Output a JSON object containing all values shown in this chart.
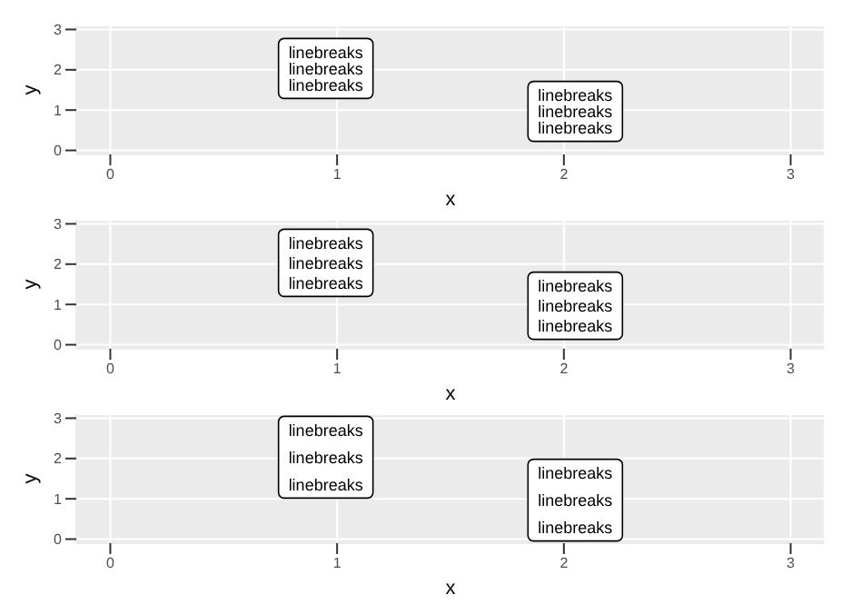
{
  "chart_data": [
    {
      "type": "scatter",
      "xlabel": "x",
      "ylabel": "y",
      "xlim": [
        -0.15,
        3.15
      ],
      "ylim": [
        -0.1,
        3.1
      ],
      "xticks": [
        0,
        1,
        2,
        3
      ],
      "yticks": [
        0,
        1,
        2,
        3
      ],
      "grid": true,
      "annotations": [
        "linebreaks\nlinebreaks\nlinebreaks",
        "linebreaks\nlinebreaks\nlinebreaks"
      ]
    },
    {
      "type": "scatter",
      "xlabel": "x",
      "ylabel": "y",
      "xlim": [
        -0.15,
        3.15
      ],
      "ylim": [
        -0.1,
        3.1
      ],
      "xticks": [
        0,
        1,
        2,
        3
      ],
      "yticks": [
        0,
        1,
        2,
        3
      ],
      "grid": true,
      "annotations": [
        "linebreaks\nlinebreaks\nlinebreaks",
        "linebreaks\nlinebreaks\nlinebreaks"
      ]
    },
    {
      "type": "scatter",
      "xlabel": "x",
      "ylabel": "y",
      "xlim": [
        -0.15,
        3.15
      ],
      "ylim": [
        -0.1,
        3.1
      ],
      "xticks": [
        0,
        1,
        2,
        3
      ],
      "yticks": [
        0,
        1,
        2,
        3
      ],
      "grid": true,
      "annotations": [
        "linebreaks\nlinebreaks\nlinebreaks",
        "linebreaks\nlinebreaks\nlinebreaks"
      ]
    }
  ]
}
